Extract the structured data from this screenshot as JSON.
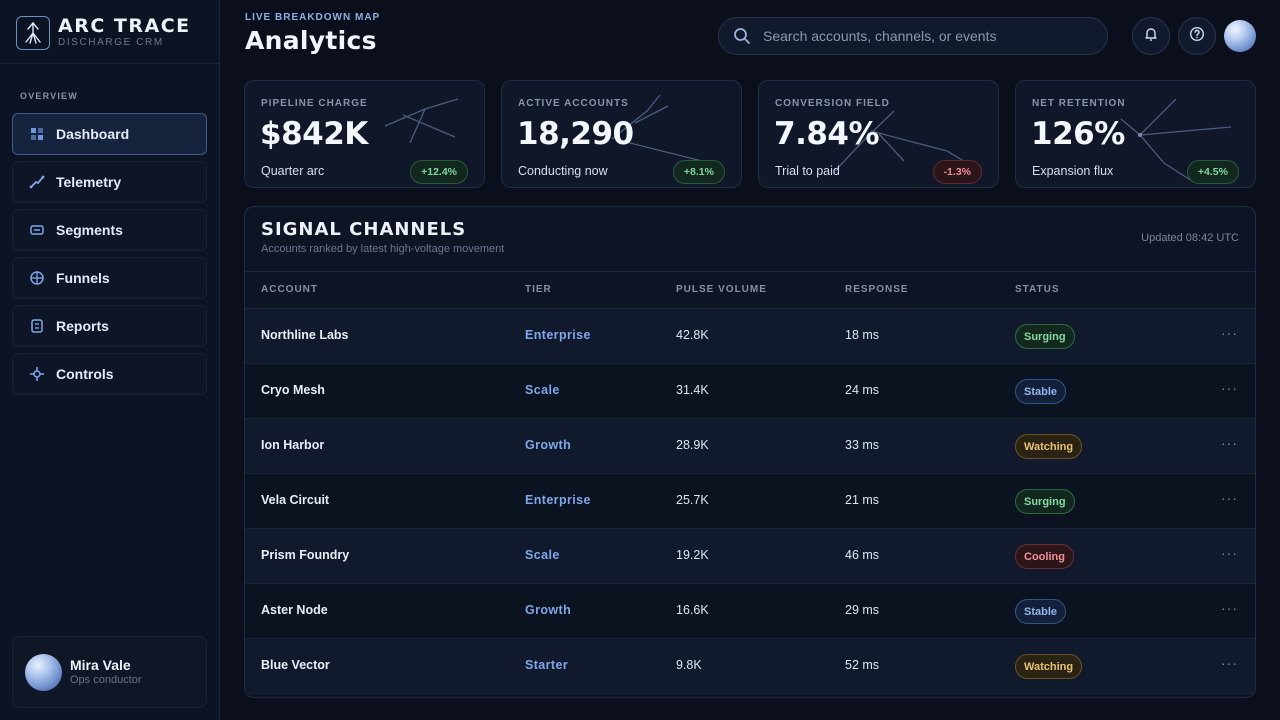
{
  "brand": {
    "name": "ARC TRACE",
    "sub": "DISCHARGE CRM"
  },
  "sidebar": {
    "section": "OVERVIEW",
    "items": [
      {
        "label": "Dashboard",
        "icon": "grid-icon",
        "active": true
      },
      {
        "label": "Telemetry",
        "icon": "line-icon"
      },
      {
        "label": "Segments",
        "icon": "segment-icon"
      },
      {
        "label": "Funnels",
        "icon": "globe-icon"
      },
      {
        "label": "Reports",
        "icon": "report-icon"
      },
      {
        "label": "Controls",
        "icon": "spark-icon"
      }
    ]
  },
  "user": {
    "name": "Mira Vale",
    "role": "Ops conductor"
  },
  "header": {
    "eyebrow": "LIVE BREAKDOWN MAP",
    "title": "Analytics"
  },
  "search": {
    "placeholder": "Search accounts, channels, or events"
  },
  "kpis": [
    {
      "label": "PIPELINE CHARGE",
      "value": "$842K",
      "sub": "Quarter arc",
      "delta": "+12.4%",
      "trend": "up"
    },
    {
      "label": "ACTIVE ACCOUNTS",
      "value": "18,290",
      "sub": "Conducting now",
      "delta": "+8.1%",
      "trend": "up"
    },
    {
      "label": "CONVERSION FIELD",
      "value": "7.84%",
      "sub": "Trial to paid",
      "delta": "-1.3%",
      "trend": "down"
    },
    {
      "label": "NET RETENTION",
      "value": "126%",
      "sub": "Expansion flux",
      "delta": "+4.5%",
      "trend": "up"
    }
  ],
  "table": {
    "title": "SIGNAL CHANNELS",
    "subtitle": "Accounts ranked by latest high-voltage movement",
    "updated": "Updated 08:42 UTC",
    "columns": [
      "ACCOUNT",
      "TIER",
      "PULSE VOLUME",
      "RESPONSE",
      "STATUS"
    ],
    "rows": [
      {
        "account": "Northline Labs",
        "tier": "Enterprise",
        "volume": "42.8K",
        "response": "18 ms",
        "status": "Surging"
      },
      {
        "account": "Cryo Mesh",
        "tier": "Scale",
        "volume": "31.4K",
        "response": "24 ms",
        "status": "Stable"
      },
      {
        "account": "Ion Harbor",
        "tier": "Growth",
        "volume": "28.9K",
        "response": "33 ms",
        "status": "Watching"
      },
      {
        "account": "Vela Circuit",
        "tier": "Enterprise",
        "volume": "25.7K",
        "response": "21 ms",
        "status": "Surging"
      },
      {
        "account": "Prism Foundry",
        "tier": "Scale",
        "volume": "19.2K",
        "response": "46 ms",
        "status": "Cooling"
      },
      {
        "account": "Aster Node",
        "tier": "Growth",
        "volume": "16.6K",
        "response": "29 ms",
        "status": "Stable"
      },
      {
        "account": "Blue Vector",
        "tier": "Starter",
        "volume": "9.8K",
        "response": "52 ms",
        "status": "Watching"
      }
    ],
    "more_label": "···"
  },
  "colors": {
    "background": "#0a0f1b",
    "accent": "#7ea7ea",
    "up": "#7fd79c",
    "down": "#f08d94",
    "watching": "#e6c173"
  }
}
